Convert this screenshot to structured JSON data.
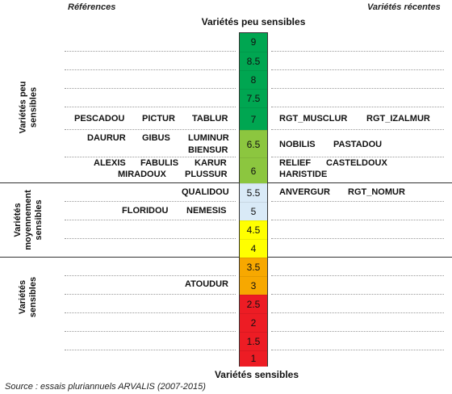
{
  "header": {
    "left_label": "Références",
    "right_label": "Variétés récentes",
    "top_title": "Variétés peu sensibles",
    "bottom_title": "Variétés sensibles"
  },
  "groups": [
    {
      "label": "Variétés peu sensibles",
      "lines": [
        "Variétés peu",
        "sensibles"
      ]
    },
    {
      "label": "Variétés moyennement sensibles",
      "lines": [
        "Variétés",
        "moyennement",
        "sensibles"
      ]
    },
    {
      "label": "Variétés sensibles",
      "lines": [
        "Variétés",
        "sensibles"
      ]
    }
  ],
  "scale": [
    {
      "value": "9",
      "color": "#00a651"
    },
    {
      "value": "8.5",
      "color": "#00a651"
    },
    {
      "value": "8",
      "color": "#00a651"
    },
    {
      "value": "7.5",
      "color": "#00a651"
    },
    {
      "value": "7",
      "color": "#00a651"
    },
    {
      "value": "6.5",
      "color": "#8cc63f"
    },
    {
      "value": "6",
      "color": "#8cc63f"
    },
    {
      "value": "5.5",
      "color": "#d9eaf7"
    },
    {
      "value": "5",
      "color": "#d9eaf7"
    },
    {
      "value": "4.5",
      "color": "#ffff00"
    },
    {
      "value": "4",
      "color": "#ffff00"
    },
    {
      "value": "3.5",
      "color": "#f7a800"
    },
    {
      "value": "3",
      "color": "#f7a800"
    },
    {
      "value": "2.5",
      "color": "#ed1c24"
    },
    {
      "value": "2",
      "color": "#ed1c24"
    },
    {
      "value": "1.5",
      "color": "#ed1c24"
    },
    {
      "value": "1",
      "color": "#ed1c24"
    }
  ],
  "references": {
    "r7": [
      "PESCADOU",
      "PICTUR",
      "TABLUR"
    ],
    "r65a": [
      "DAURUR",
      "GIBUS",
      "LUMINUR"
    ],
    "r65b": [
      "BIENSUR"
    ],
    "r6a": [
      "ALEXIS",
      "FABULIS",
      "KARUR"
    ],
    "r6b": [
      "MIRADOUX",
      "PLUSSUR"
    ],
    "r55": [
      "QUALIDOU"
    ],
    "r5": [
      "FLORIDOU",
      "NEMESIS"
    ],
    "r3": [
      "ATOUDUR"
    ]
  },
  "recent": {
    "r7": [
      "RGT_MUSCLUR",
      "RGT_IZALMUR"
    ],
    "r65": [
      "NOBILIS",
      "PASTADOU"
    ],
    "r6a": [
      "RELIEF",
      "CASTELDOUX"
    ],
    "r6b": [
      "HARISTIDE"
    ],
    "r55": [
      "ANVERGUR",
      "RGT_NOMUR"
    ]
  },
  "source": "Source : essais pluriannuels ARVALIS (2007-2015)"
}
